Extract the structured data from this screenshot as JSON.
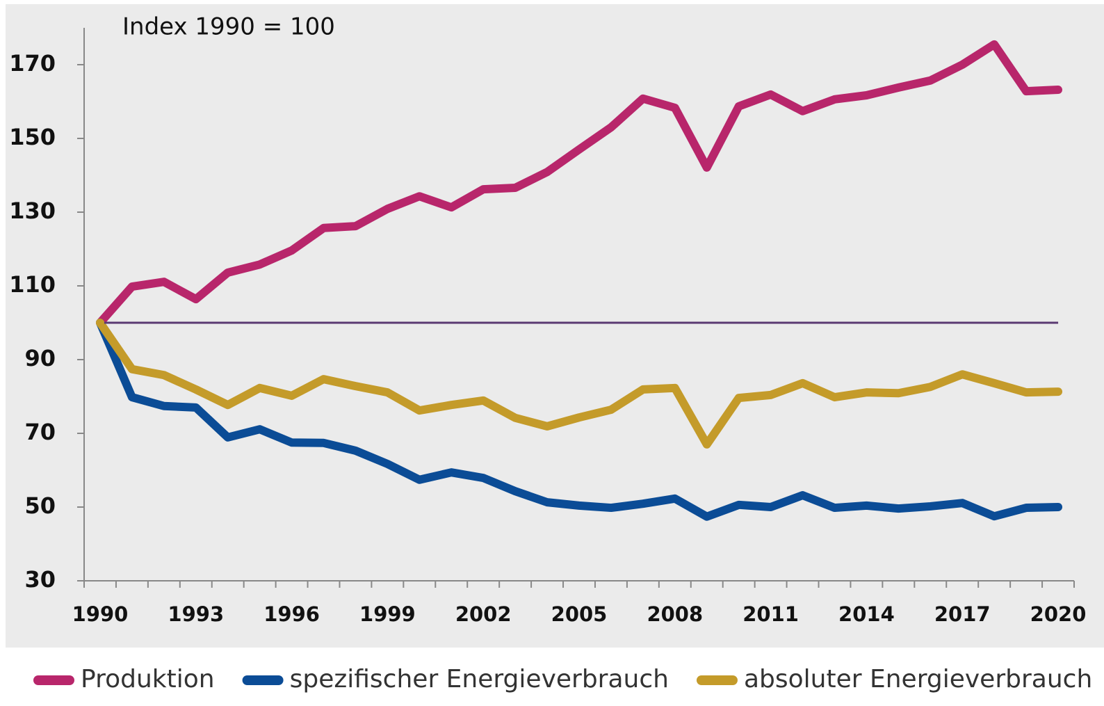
{
  "chart_data": {
    "type": "line",
    "annotation": "Index 1990 = 100",
    "categories": [
      "1990",
      null,
      null,
      "1993",
      null,
      null,
      "1996",
      null,
      null,
      "1999",
      null,
      null,
      "2002",
      null,
      null,
      "2005",
      null,
      null,
      "2008",
      null,
      null,
      "2011",
      null,
      null,
      "2014",
      null,
      null,
      "2017",
      null,
      null,
      "2020"
    ],
    "series": [
      {
        "name": "Produktion",
        "color": "#b8266b",
        "values": [
          100,
          109.8,
          111.1,
          106.4,
          113.6,
          115.8,
          119.6,
          125.7,
          126.2,
          130.9,
          134.3,
          131.3,
          136.2,
          136.6,
          140.9,
          147,
          153,
          160.8,
          158.3,
          142.1,
          158.7,
          161.9,
          157.4,
          160.6,
          161.7,
          163.8,
          165.7,
          170,
          175.5,
          162.8,
          163.2
        ]
      },
      {
        "name": "spezifischer Energieverbrauch",
        "color": "#0b4c96",
        "values": [
          100,
          79.8,
          77.4,
          77,
          68.9,
          71.1,
          67.5,
          67.4,
          65.3,
          61.7,
          57.4,
          59.4,
          57.9,
          54.3,
          51.3,
          50.4,
          49.8,
          50.9,
          52.3,
          47.4,
          50.6,
          50,
          53.2,
          49.8,
          50.4,
          49.6,
          50.2,
          51.1,
          47.5,
          49.8,
          50
        ]
      },
      {
        "name": "absoluter Energieverbrauch",
        "color": "#c49b2a",
        "values": [
          100,
          87.4,
          85.8,
          81.9,
          77.7,
          82.3,
          80.2,
          84.7,
          82.8,
          81.1,
          76.2,
          77.7,
          78.9,
          74.2,
          71.9,
          74.3,
          76.4,
          81.9,
          82.3,
          67,
          79.6,
          80.4,
          83.6,
          79.8,
          81.1,
          80.9,
          82.6,
          86,
          83.6,
          81.1,
          81.3
        ]
      }
    ],
    "reference_line": {
      "value": 100,
      "color": "#5b3a72"
    },
    "ylim": [
      30,
      180
    ],
    "yticks": [
      30,
      50,
      70,
      90,
      110,
      130,
      150,
      170
    ],
    "legend": "bottom"
  }
}
